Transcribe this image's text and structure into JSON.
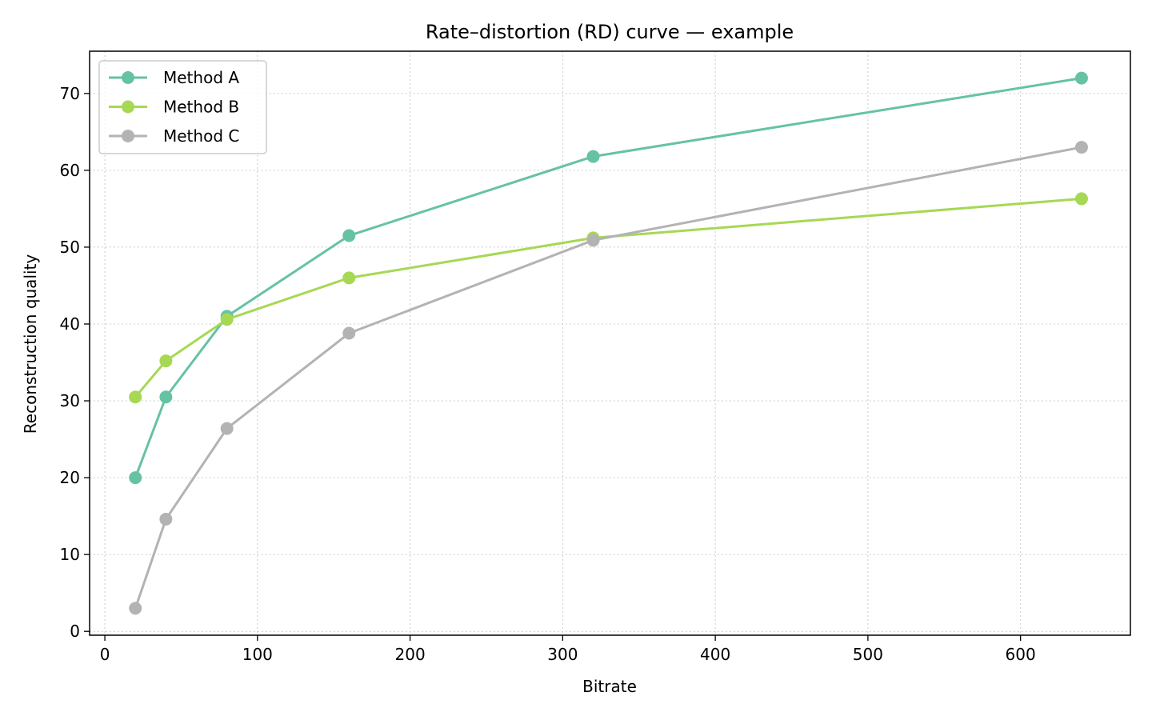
{
  "chart_data": {
    "type": "line",
    "title": "Rate–distortion (RD) curve — example",
    "xlabel": "Bitrate",
    "ylabel": "Reconstruction quality",
    "xlim": [
      -10,
      672
    ],
    "ylim": [
      -0.5,
      75.5
    ],
    "xticks": [
      0,
      100,
      200,
      300,
      400,
      500,
      600
    ],
    "yticks": [
      0,
      10,
      20,
      30,
      40,
      50,
      60,
      70
    ],
    "grid": true,
    "grid_style": "dotted",
    "legend_position": "top-left",
    "x": [
      20,
      40,
      80,
      160,
      320,
      640
    ],
    "series": [
      {
        "name": "Method A",
        "color": "#66c2a5",
        "values": [
          20.0,
          30.5,
          41.0,
          51.5,
          61.8,
          72.0
        ]
      },
      {
        "name": "Method B",
        "color": "#a6d854",
        "values": [
          30.5,
          35.2,
          40.6,
          46.0,
          51.2,
          56.3
        ]
      },
      {
        "name": "Method C",
        "color": "#b3b3b3",
        "values": [
          3.0,
          14.6,
          26.4,
          38.8,
          50.9,
          63.0
        ]
      }
    ]
  }
}
